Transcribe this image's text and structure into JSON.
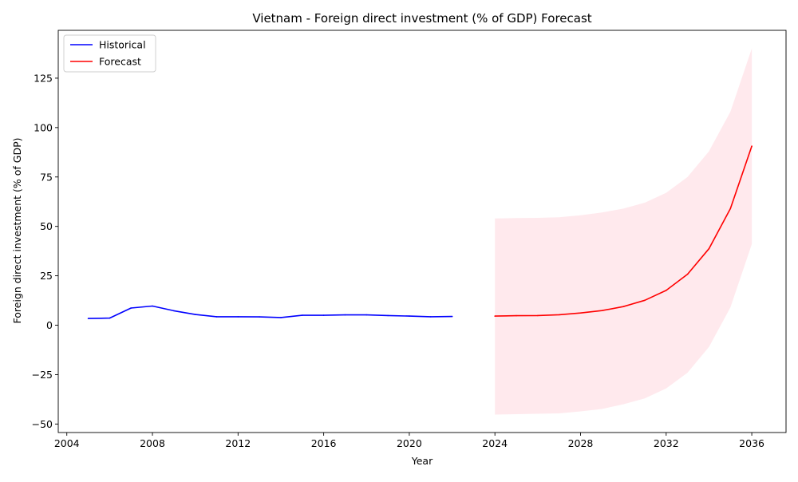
{
  "chart_data": {
    "type": "line",
    "title": "Vietnam - Foreign direct investment (% of GDP) Forecast",
    "xlabel": "Year",
    "ylabel": "Foreign direct investment (% of GDP)",
    "xlim": [
      2003.6,
      2037.6
    ],
    "ylim": [
      -54.3,
      149.2
    ],
    "xticks": [
      2004,
      2008,
      2012,
      2016,
      2020,
      2024,
      2028,
      2032,
      2036
    ],
    "yticks": [
      -50,
      -25,
      0,
      25,
      50,
      75,
      100,
      125
    ],
    "grid": false,
    "legend_position": "upper-left",
    "series": [
      {
        "name": "Historical",
        "color": "#0000ff",
        "x": [
          2005,
          2006,
          2007,
          2008,
          2009,
          2010,
          2011,
          2012,
          2013,
          2014,
          2015,
          2016,
          2017,
          2018,
          2019,
          2020,
          2021,
          2022
        ],
        "y": [
          3.4,
          3.6,
          8.7,
          9.7,
          7.3,
          5.4,
          4.3,
          4.3,
          4.2,
          3.9,
          5.0,
          5.0,
          5.2,
          5.2,
          4.9,
          4.6,
          4.3,
          4.4
        ]
      },
      {
        "name": "Forecast",
        "color": "#ff0000",
        "x": [
          2024,
          2025,
          2026,
          2027,
          2028,
          2029,
          2030,
          2031,
          2032,
          2033,
          2034,
          2035,
          2036
        ],
        "y": [
          4.6,
          4.8,
          4.9,
          5.3,
          6.2,
          7.4,
          9.4,
          12.6,
          17.6,
          25.8,
          38.7,
          59.0,
          90.6
        ]
      }
    ],
    "confidence_band": {
      "color": "#ffc0cb",
      "opacity": 0.35,
      "x": [
        2024,
        2025,
        2026,
        2027,
        2028,
        2029,
        2030,
        2031,
        2032,
        2033,
        2034,
        2035,
        2036
      ],
      "lower": [
        -45.2,
        -45.0,
        -44.8,
        -44.6,
        -43.6,
        -42.4,
        -40.0,
        -37.0,
        -32.0,
        -24.0,
        -11.0,
        9.0,
        41.0
      ],
      "upper": [
        54.0,
        54.2,
        54.3,
        54.6,
        55.6,
        57.0,
        59.0,
        62.0,
        67.0,
        75.0,
        88.0,
        108.0,
        140.0
      ]
    }
  }
}
